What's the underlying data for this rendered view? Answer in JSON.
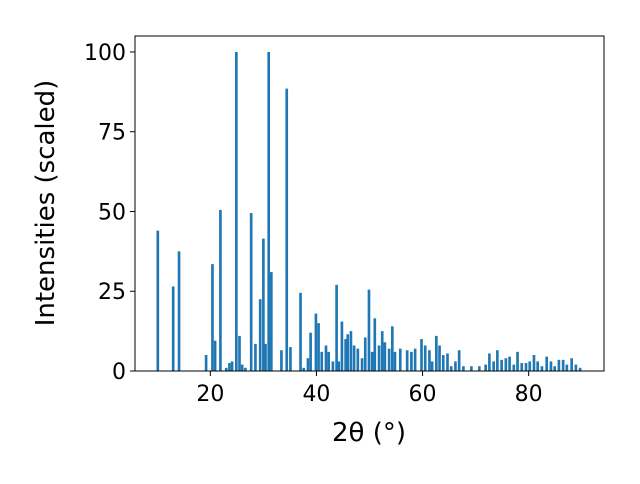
{
  "chart_data": {
    "type": "bar",
    "x_label": "2θ (°)",
    "y_label": "Intensities (scaled)",
    "color": "#1f77b4",
    "x": [
      10.1,
      13.0,
      14.1,
      19.2,
      20.4,
      20.9,
      21.9,
      23.0,
      23.6,
      24.1,
      24.9,
      25.5,
      26.0,
      26.6,
      27.7,
      28.5,
      29.4,
      30.0,
      30.4,
      31.0,
      31.5,
      33.4,
      34.4,
      35.1,
      37.0,
      37.6,
      38.4,
      38.9,
      39.9,
      40.4,
      41.0,
      41.8,
      42.3,
      43.1,
      43.8,
      44.2,
      44.8,
      45.5,
      45.9,
      46.5,
      47.1,
      47.8,
      48.6,
      49.2,
      49.9,
      50.5,
      51.0,
      51.8,
      52.4,
      52.9,
      53.7,
      54.3,
      54.8,
      55.8,
      57.1,
      57.9,
      58.6,
      59.8,
      60.5,
      61.3,
      61.8,
      62.6,
      63.2,
      63.9,
      64.7,
      65.4,
      66.2,
      66.9,
      67.7,
      69.2,
      70.7,
      71.9,
      72.6,
      73.4,
      74.1,
      74.9,
      75.7,
      76.4,
      77.2,
      77.9,
      78.7,
      79.5,
      80.2,
      81.0,
      81.7,
      82.5,
      83.4,
      84.2,
      84.9,
      85.7,
      86.5,
      87.2,
      88.1,
      88.9,
      89.7
    ],
    "values": [
      44,
      26.5,
      37.5,
      5,
      33.5,
      9.5,
      50.5,
      1,
      2.5,
      3,
      100,
      11,
      2,
      1,
      49.5,
      8.5,
      22.5,
      41.5,
      8.5,
      100,
      31,
      6.5,
      88.5,
      7.5,
      24.5,
      1,
      4,
      12,
      18,
      15,
      6,
      8,
      6,
      3,
      27,
      3,
      15.5,
      10,
      11.5,
      12.5,
      8,
      7,
      4,
      10.5,
      25.5,
      6,
      16.5,
      8,
      12.5,
      9,
      7,
      14,
      6,
      7,
      6.5,
      6,
      7,
      10,
      8,
      6.5,
      3,
      11,
      8,
      5,
      5.5,
      1.5,
      3,
      6.5,
      1.5,
      1.5,
      1.5,
      2,
      5.5,
      3,
      6.5,
      3.5,
      4,
      4.5,
      2,
      6,
      2.5,
      2.5,
      3,
      5,
      3,
      1.5,
      4.5,
      3,
      1.5,
      3.5,
      3.5,
      2,
      4,
      2,
      1
    ],
    "xlim": [
      5.8,
      94.2
    ],
    "ylim": [
      0,
      105
    ],
    "xticks": [
      20,
      40,
      60,
      80
    ],
    "yticks": [
      0,
      25,
      50,
      75,
      100
    ]
  }
}
